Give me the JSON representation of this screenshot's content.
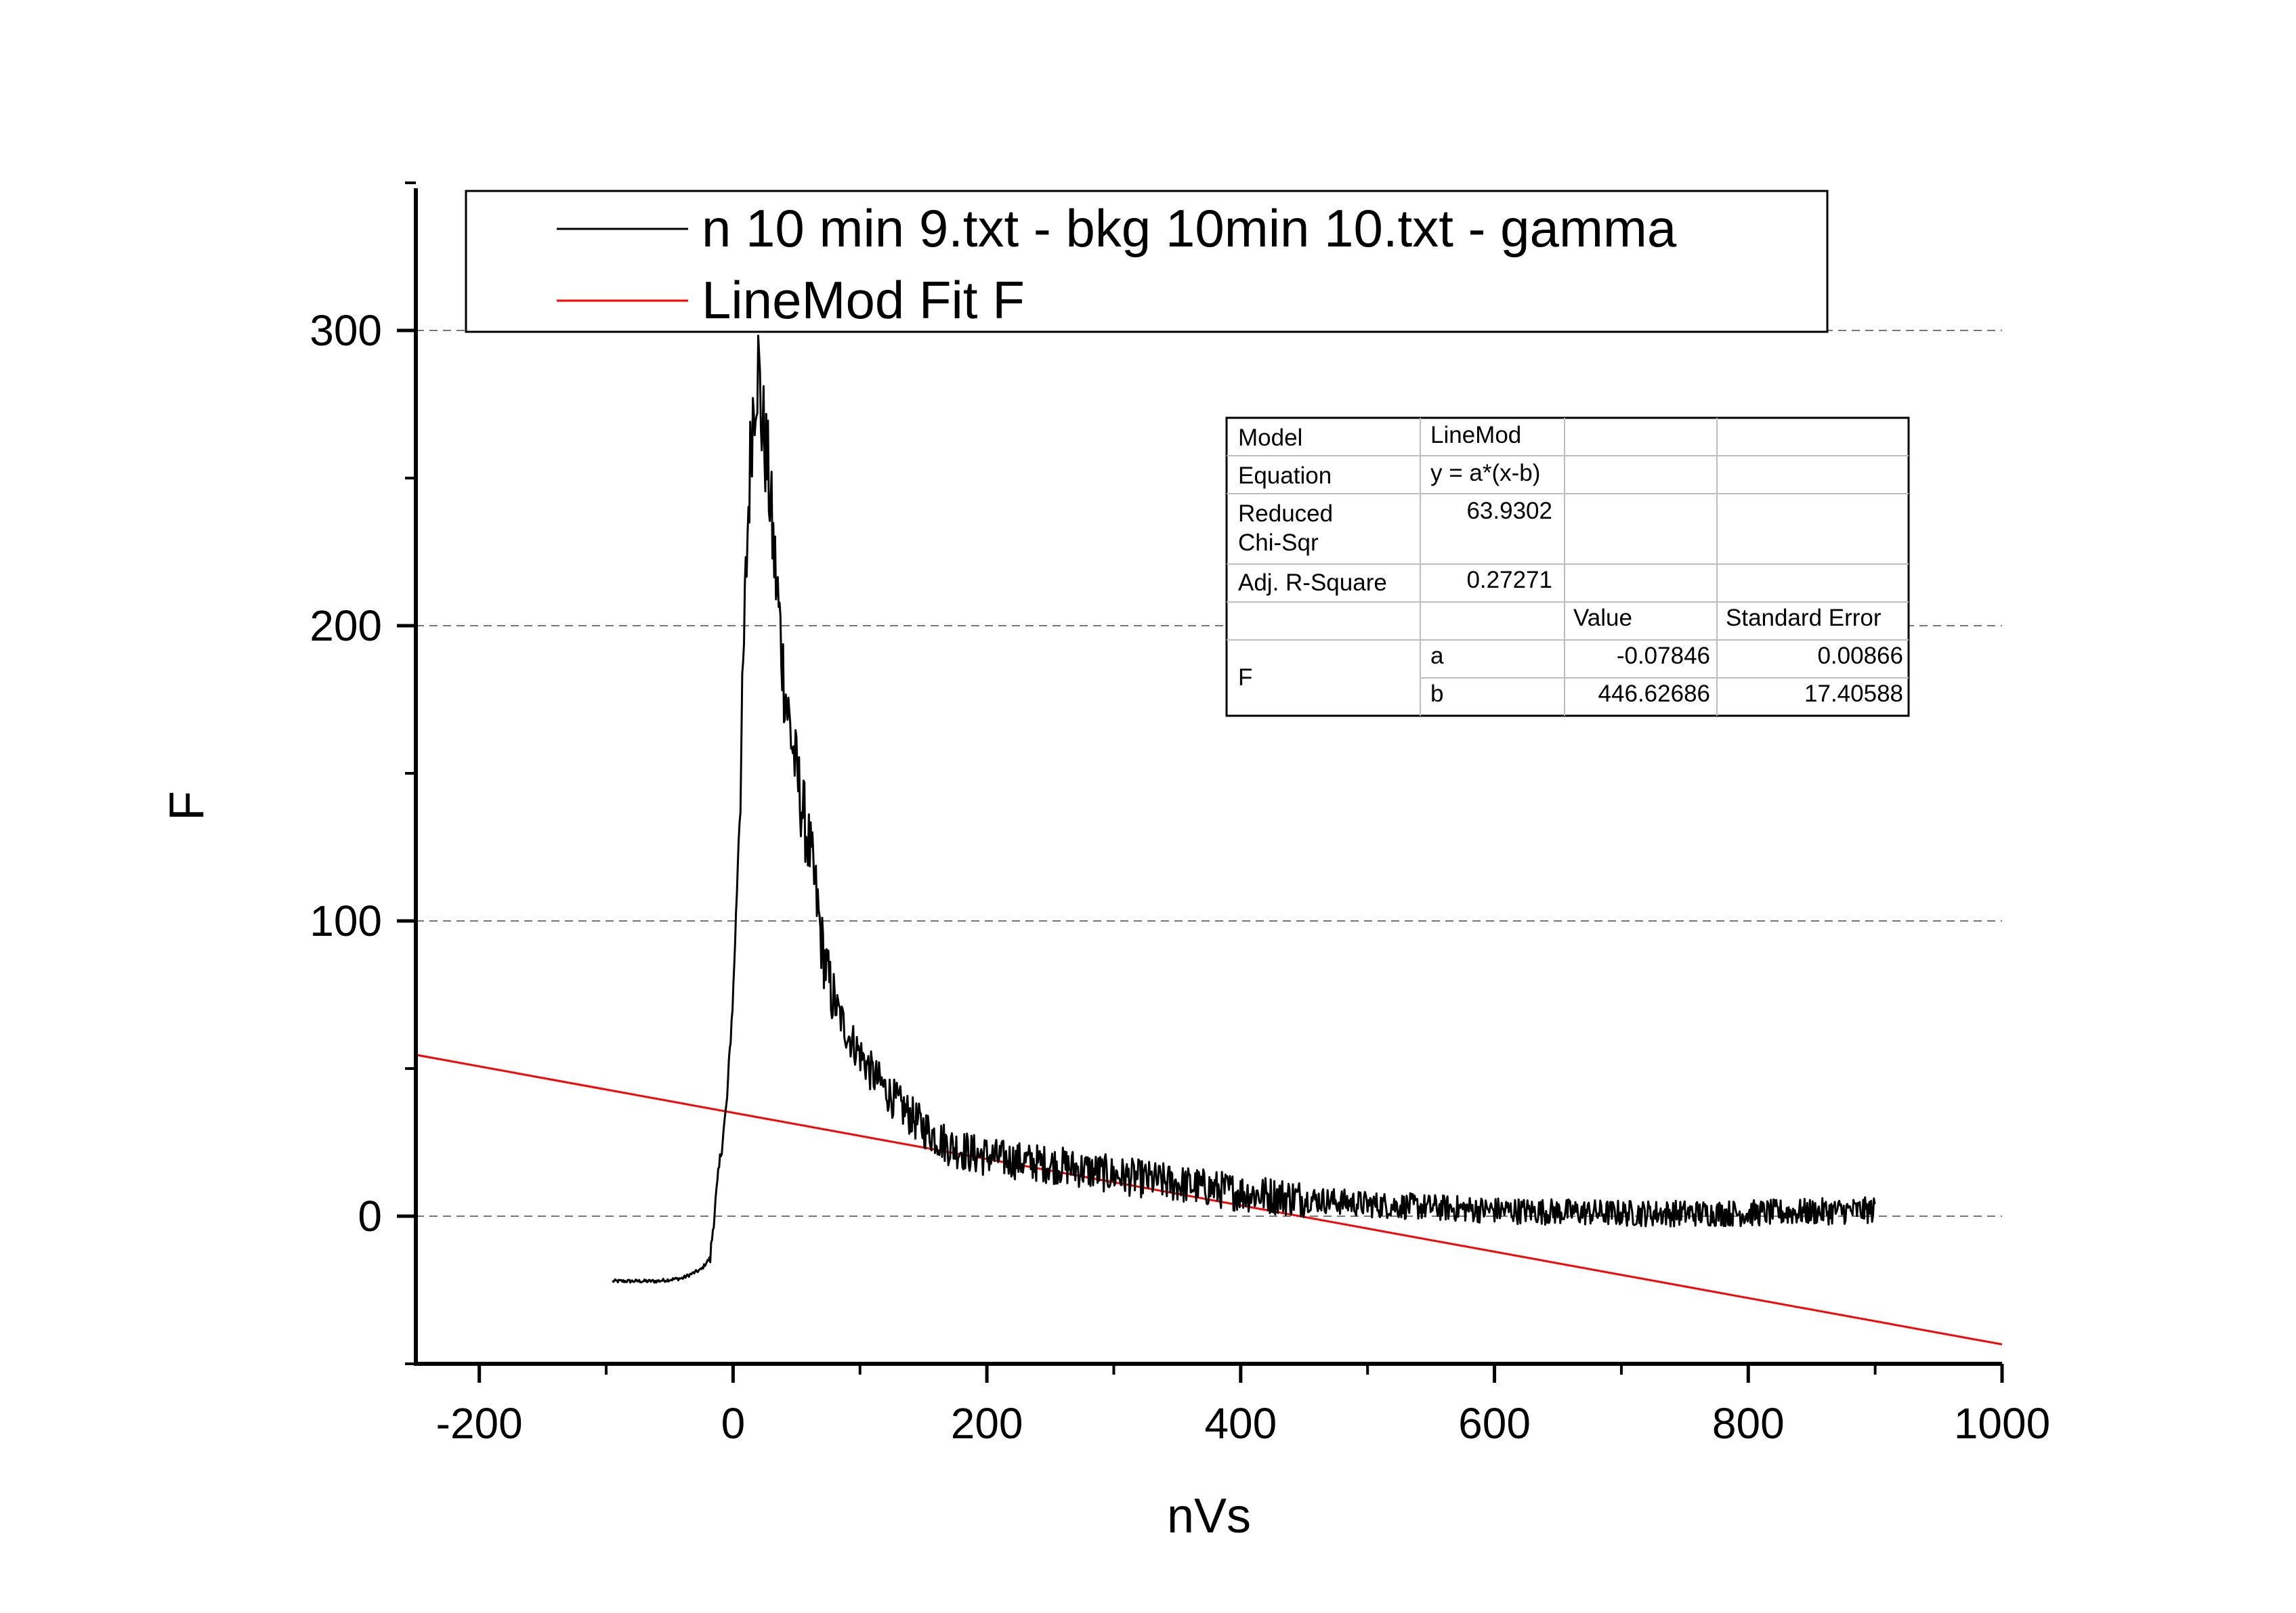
{
  "chart_data": {
    "type": "line",
    "xlabel": "nVs",
    "ylabel": "F",
    "xlim": [
      -250,
      1000
    ],
    "ylim": [
      -50,
      350
    ],
    "x_ticks": [
      -200,
      0,
      200,
      400,
      600,
      800,
      1000
    ],
    "x_tick_labels": [
      "-200",
      "0",
      "200",
      "400",
      "600",
      "800",
      "1000"
    ],
    "y_ticks": [
      0,
      100,
      200,
      300
    ],
    "y_tick_labels": [
      "0",
      "100",
      "200",
      "300"
    ],
    "grid": "horizontal dashed at y ticks",
    "legend_position": "top",
    "series": [
      {
        "name": "n 10 min 9.txt - bkg 10min 10.txt - gamma",
        "color": "#000000",
        "points": [
          [
            -95,
            -22
          ],
          [
            -60,
            -22
          ],
          [
            -40,
            -21
          ],
          [
            -25,
            -18
          ],
          [
            -18,
            -14
          ],
          [
            -15,
            0
          ],
          [
            -10,
            20
          ],
          [
            -5,
            38
          ],
          [
            0,
            75
          ],
          [
            3,
            110
          ],
          [
            6,
            150
          ],
          [
            9,
            200
          ],
          [
            12,
            240
          ],
          [
            15,
            270
          ],
          [
            18,
            285
          ],
          [
            20,
            288
          ],
          [
            22,
            272
          ],
          [
            25,
            262
          ],
          [
            28,
            250
          ],
          [
            32,
            225
          ],
          [
            36,
            205
          ],
          [
            40,
            182
          ],
          [
            45,
            165
          ],
          [
            50,
            150
          ],
          [
            55,
            137
          ],
          [
            60,
            125
          ],
          [
            65,
            110
          ],
          [
            70,
            92
          ],
          [
            75,
            80
          ],
          [
            80,
            72
          ],
          [
            90,
            62
          ],
          [
            100,
            55
          ],
          [
            110,
            48
          ],
          [
            120,
            43
          ],
          [
            130,
            38
          ],
          [
            140,
            34
          ],
          [
            150,
            30
          ],
          [
            170,
            24
          ],
          [
            190,
            21
          ],
          [
            220,
            19
          ],
          [
            260,
            17
          ],
          [
            300,
            14
          ],
          [
            350,
            11
          ],
          [
            400,
            8
          ],
          [
            450,
            6
          ],
          [
            500,
            4
          ],
          [
            600,
            2
          ],
          [
            700,
            1
          ],
          [
            800,
            1
          ],
          [
            900,
            2
          ]
        ]
      },
      {
        "name": "LineMod Fit F",
        "color": "#ff0000",
        "a": -0.07846,
        "b": 446.62686
      }
    ]
  },
  "fit_table": {
    "model_label": "Model",
    "model_value": "LineMod",
    "equation_label": "Equation",
    "equation_value": "y = a*(x-b)",
    "chisq_label_line1": "Reduced",
    "chisq_label_line2": "Chi-Sqr",
    "chisq_value": "63.9302",
    "r2_label": "Adj. R-Square",
    "r2_value": "0.27271",
    "value_header": "Value",
    "error_header": "Standard Error",
    "param_group": "F",
    "param_a_name": "a",
    "param_a_value": "-0.07846",
    "param_a_error": "0.00866",
    "param_b_name": "b",
    "param_b_value": "446.62686",
    "param_b_error": "17.40588"
  }
}
